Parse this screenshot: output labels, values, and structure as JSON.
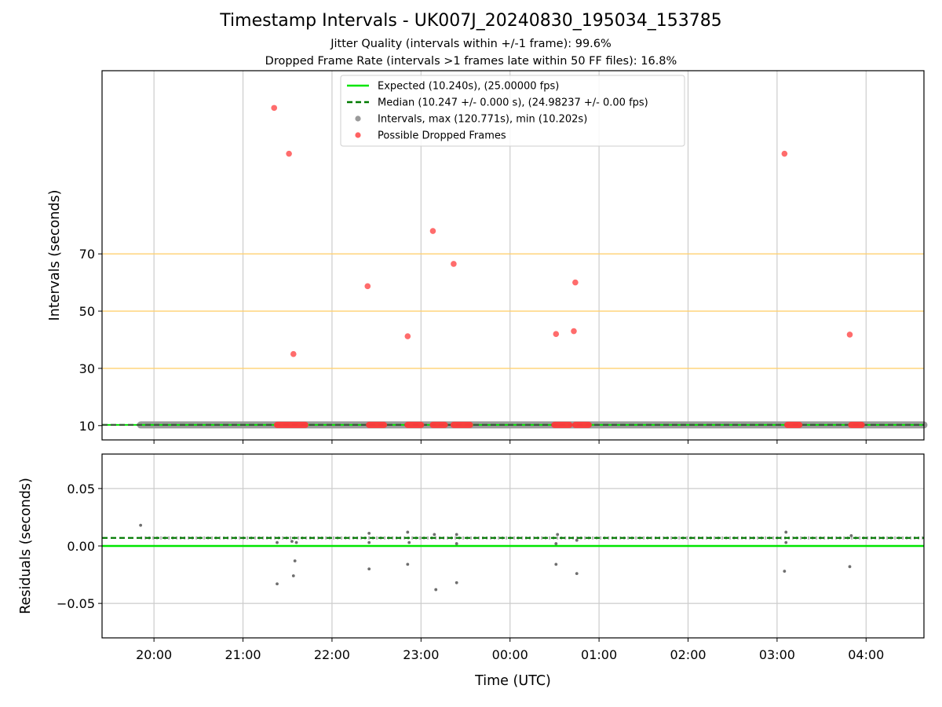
{
  "figure": {
    "title": "Timestamp Intervals - UK007J_20240830_195034_153785",
    "subtitle_jitter": "Jitter Quality (intervals within +/-1 frame): 99.6%",
    "subtitle_dropped": "Dropped Frame Rate (intervals >1 frames late within 50 FF files): 16.8%"
  },
  "colors": {
    "expected": "#00e600",
    "median": "#007a00",
    "intervals": "#9a9a9a",
    "dropped": "#ff3b3b",
    "reference_lines": "#ffd070",
    "grid": "#cccccc",
    "residual_points": "#6e6e6e"
  },
  "chart_data": [
    {
      "type": "scatter",
      "panel": "intervals",
      "ylabel": "Intervals (seconds)",
      "xlabel": "",
      "x_range": [
        "19:25",
        "04:39"
      ],
      "ylim": [
        5,
        134
      ],
      "yticks": [
        10,
        30,
        50,
        70
      ],
      "xticks": [
        "20:00",
        "21:00",
        "22:00",
        "23:00",
        "00:00",
        "01:00",
        "02:00",
        "03:00",
        "04:00"
      ],
      "grid": "vertical",
      "reference_lines": [
        30,
        50,
        70
      ],
      "expected_value": 10.24,
      "median_value": 10.247,
      "legend_position": "upper-center",
      "legend": [
        "Expected (10.240s), (25.00000 fps)",
        "Median (10.247 +/- 0.000 s), (24.98237 +/- 0.00 fps)",
        "Intervals, max (120.771s), min (10.202s)",
        "Possible Dropped Frames"
      ],
      "intervals_series": {
        "name": "Intervals, max (120.771s), min (10.202s)",
        "x_start": "19:51",
        "x_end": "04:39",
        "value": 10.247
      },
      "dropped_frames": [
        {
          "x": "21:21",
          "y": 121.0
        },
        {
          "x": "21:31",
          "y": 105.0
        },
        {
          "x": "21:34",
          "y": 35.0
        },
        {
          "x": "22:24",
          "y": 58.7
        },
        {
          "x": "22:51",
          "y": 41.2
        },
        {
          "x": "23:08",
          "y": 78.0
        },
        {
          "x": "23:22",
          "y": 66.5
        },
        {
          "x": "00:31",
          "y": 42.0
        },
        {
          "x": "00:43",
          "y": 43.0
        },
        {
          "x": "00:44",
          "y": 60.0
        },
        {
          "x": "03:05",
          "y": 105.0
        },
        {
          "x": "03:49",
          "y": 41.8
        }
      ],
      "dropped_clusters": [
        {
          "x_start": "21:23",
          "x_end": "21:42",
          "y": 10.24
        },
        {
          "x_start": "22:25",
          "x_end": "22:35",
          "y": 10.24
        },
        {
          "x_start": "22:51",
          "x_end": "23:00",
          "y": 10.24
        },
        {
          "x_start": "23:08",
          "x_end": "23:16",
          "y": 10.24
        },
        {
          "x_start": "23:22",
          "x_end": "23:33",
          "y": 10.24
        },
        {
          "x_start": "00:30",
          "x_end": "00:40",
          "y": 10.24
        },
        {
          "x_start": "00:44",
          "x_end": "00:53",
          "y": 10.24
        },
        {
          "x_start": "03:07",
          "x_end": "03:15",
          "y": 10.24
        },
        {
          "x_start": "03:50",
          "x_end": "03:57",
          "y": 10.24
        }
      ]
    },
    {
      "type": "scatter",
      "panel": "residuals",
      "ylabel": "Residuals (seconds)",
      "xlabel": "Time (UTC)",
      "x_range": [
        "19:25",
        "04:39"
      ],
      "ylim": [
        -0.08,
        0.08
      ],
      "yticks": [
        0.05,
        0.0,
        -0.05
      ],
      "ytick_labels": [
        "0.05",
        "0.00",
        "−0.05"
      ],
      "xticks": [
        "20:00",
        "21:00",
        "22:00",
        "23:00",
        "00:00",
        "01:00",
        "02:00",
        "03:00",
        "04:00"
      ],
      "grid": "both",
      "expected_value": 0.0,
      "median_value": 0.007,
      "residual_band": {
        "x_start": "19:51",
        "x_end": "04:39",
        "value": 0.007
      },
      "residual_outliers": [
        {
          "x": "19:51",
          "y": 0.018
        },
        {
          "x": "21:23",
          "y": -0.033
        },
        {
          "x": "21:23",
          "y": 0.003
        },
        {
          "x": "21:34",
          "y": -0.026
        },
        {
          "x": "21:35",
          "y": -0.013
        },
        {
          "x": "21:33",
          "y": 0.004
        },
        {
          "x": "21:36",
          "y": 0.003
        },
        {
          "x": "22:25",
          "y": -0.02
        },
        {
          "x": "22:25",
          "y": 0.003
        },
        {
          "x": "22:25",
          "y": 0.011
        },
        {
          "x": "22:51",
          "y": -0.016
        },
        {
          "x": "22:51",
          "y": 0.012
        },
        {
          "x": "22:52",
          "y": 0.003
        },
        {
          "x": "23:10",
          "y": -0.038
        },
        {
          "x": "23:09",
          "y": 0.01
        },
        {
          "x": "23:24",
          "y": -0.032
        },
        {
          "x": "23:24",
          "y": 0.002
        },
        {
          "x": "23:24",
          "y": 0.01
        },
        {
          "x": "00:31",
          "y": -0.016
        },
        {
          "x": "00:31",
          "y": 0.002
        },
        {
          "x": "00:32",
          "y": 0.01
        },
        {
          "x": "00:45",
          "y": -0.024
        },
        {
          "x": "00:45",
          "y": 0.005
        },
        {
          "x": "03:05",
          "y": -0.022
        },
        {
          "x": "03:06",
          "y": 0.003
        },
        {
          "x": "03:06",
          "y": 0.012
        },
        {
          "x": "03:49",
          "y": -0.018
        },
        {
          "x": "03:50",
          "y": 0.009
        }
      ]
    }
  ]
}
